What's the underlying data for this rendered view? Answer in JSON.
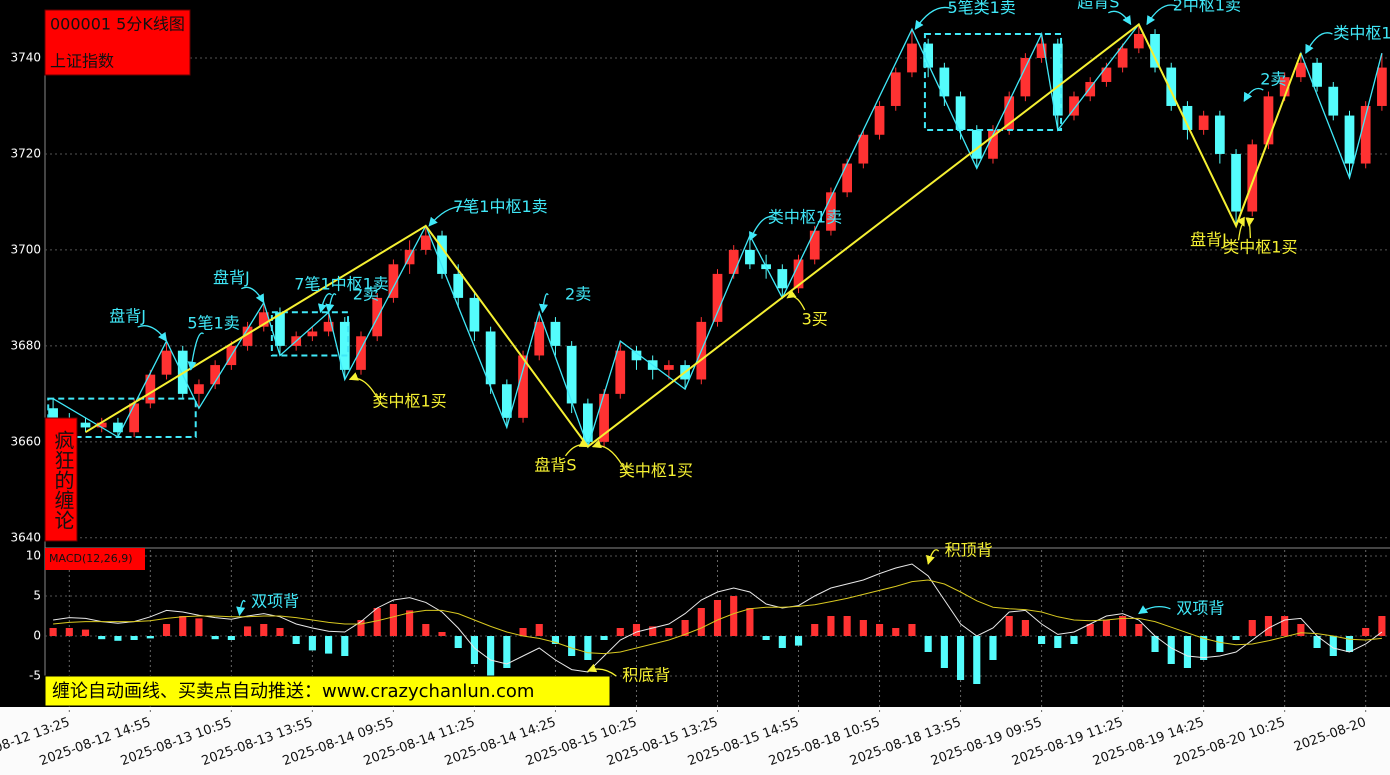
{
  "chart_data": {
    "type": "candlestick",
    "title": "000001 5分K线图",
    "subtitle": "上证指数",
    "brand": "疯狂的缠论",
    "footer": "缠论自动画线、买卖点自动推送：www.crazychanlun.com",
    "up_color": "#ff3232",
    "down_color": "#54fcfc",
    "xlim": [
      -0.5,
      82.5
    ],
    "xticks": [
      {
        "value": 1,
        "label": "2025-08-12 13:25"
      },
      {
        "value": 6,
        "label": "2025-08-12 14:55"
      },
      {
        "value": 11,
        "label": "2025-08-13 10:55"
      },
      {
        "value": 16,
        "label": "2025-08-13 13:55"
      },
      {
        "value": 21,
        "label": "2025-08-14 09:55"
      },
      {
        "value": 26,
        "label": "2025-08-14 11:25"
      },
      {
        "value": 31,
        "label": "2025-08-14 14:25"
      },
      {
        "value": 36,
        "label": "2025-08-15 10:25"
      },
      {
        "value": 41,
        "label": "2025-08-15 13:25"
      },
      {
        "value": 46,
        "label": "2025-08-15 14:55"
      },
      {
        "value": 51,
        "label": "2025-08-18 10:55"
      },
      {
        "value": 56,
        "label": "2025-08-18 13:55"
      },
      {
        "value": 61,
        "label": "2025-08-19 09:55"
      },
      {
        "value": 66,
        "label": "2025-08-19 11:25"
      },
      {
        "value": 71,
        "label": "2025-08-19 14:25"
      },
      {
        "value": 76,
        "label": "2025-08-20 10:25"
      },
      {
        "value": 81,
        "label": "2025-08-20"
      }
    ],
    "ylim": [
      3638.5,
      3750
    ],
    "yticks": [
      3640,
      3660,
      3680,
      3700,
      3720,
      3740
    ],
    "grid": true,
    "open": [
      3667,
      3665,
      3664,
      3663,
      3664,
      3662,
      3668,
      3674,
      3679,
      3670,
      3672,
      3676,
      3680,
      3684,
      3687,
      3680,
      3682,
      3683,
      3685,
      3675,
      3682,
      3690,
      3697,
      3700,
      3703,
      3695,
      3690,
      3683,
      3672,
      3665,
      3678,
      3685,
      3680,
      3668,
      3660,
      3670,
      3679,
      3677,
      3675,
      3676,
      3673,
      3685,
      3695,
      3700,
      3697,
      3696,
      3692,
      3698,
      3704,
      3712,
      3718,
      3724,
      3730,
      3737,
      3743,
      3738,
      3732,
      3725,
      3719,
      3725,
      3732,
      3740,
      3743,
      3728,
      3732,
      3735,
      3738,
      3742,
      3745,
      3738,
      3730,
      3725,
      3728,
      3720,
      3708,
      3722,
      3732,
      3736,
      3739,
      3734,
      3728,
      3718,
      3730
    ],
    "high": [
      3669,
      3666,
      3665,
      3665,
      3665,
      3669,
      3675,
      3681,
      3680,
      3673,
      3677,
      3681,
      3685,
      3689,
      3688,
      3683,
      3684,
      3687,
      3686,
      3683,
      3691,
      3698,
      3702,
      3705,
      3704,
      3697,
      3691,
      3684,
      3673,
      3679,
      3687,
      3686,
      3681,
      3669,
      3671,
      3681,
      3680,
      3678,
      3677,
      3677,
      3686,
      3696,
      3701,
      3703,
      3699,
      3697,
      3699,
      3705,
      3713,
      3719,
      3725,
      3731,
      3738,
      3746,
      3744,
      3739,
      3733,
      3726,
      3726,
      3733,
      3741,
      3745,
      3744,
      3733,
      3736,
      3739,
      3743,
      3747,
      3746,
      3739,
      3731,
      3729,
      3729,
      3721,
      3723,
      3733,
      3737,
      3741,
      3740,
      3735,
      3729,
      3731,
      3741
    ],
    "low": [
      3664,
      3663,
      3662,
      3662,
      3661,
      3661,
      3667,
      3673,
      3669,
      3667,
      3671,
      3675,
      3679,
      3683,
      3678,
      3679,
      3681,
      3682,
      3673,
      3674,
      3681,
      3689,
      3695,
      3699,
      3694,
      3688,
      3681,
      3670,
      3663,
      3664,
      3677,
      3678,
      3666,
      3659,
      3659,
      3669,
      3675,
      3673,
      3673,
      3671,
      3672,
      3684,
      3694,
      3696,
      3694,
      3690,
      3691,
      3697,
      3703,
      3711,
      3717,
      3723,
      3729,
      3736,
      3736,
      3730,
      3723,
      3717,
      3718,
      3724,
      3731,
      3739,
      3725,
      3727,
      3731,
      3734,
      3737,
      3741,
      3737,
      3729,
      3723,
      3724,
      3718,
      3705,
      3707,
      3721,
      3731,
      3735,
      3733,
      3727,
      3715,
      3717,
      3729
    ],
    "close": [
      3665,
      3664,
      3663,
      3664,
      3662,
      3668,
      3674,
      3679,
      3670,
      3672,
      3676,
      3680,
      3684,
      3687,
      3680,
      3682,
      3683,
      3685,
      3675,
      3682,
      3690,
      3697,
      3700,
      3703,
      3695,
      3690,
      3683,
      3672,
      3665,
      3678,
      3685,
      3680,
      3668,
      3660,
      3670,
      3679,
      3677,
      3675,
      3676,
      3673,
      3685,
      3695,
      3700,
      3697,
      3696,
      3692,
      3698,
      3704,
      3712,
      3718,
      3724,
      3730,
      3737,
      3743,
      3738,
      3732,
      3725,
      3719,
      3725,
      3732,
      3740,
      3743,
      3728,
      3732,
      3735,
      3738,
      3742,
      3745,
      3738,
      3730,
      3725,
      3728,
      3720,
      3708,
      3722,
      3732,
      3736,
      3739,
      3734,
      3728,
      3718,
      3730,
      3738
    ],
    "bi": {
      "color": "#40e8f8",
      "x": [
        0,
        4,
        7,
        9,
        13,
        14,
        17,
        18,
        23,
        28,
        30,
        33,
        35,
        39,
        43,
        45,
        53,
        57,
        61,
        62,
        67,
        73,
        77,
        80,
        82
      ],
      "y": [
        3669,
        3661,
        3681,
        3667,
        3689,
        3678,
        3687,
        3673,
        3705,
        3663,
        3687,
        3659,
        3681,
        3671,
        3703,
        3690,
        3746,
        3717,
        3745,
        3725,
        3747,
        3705,
        3741,
        3715,
        3741
      ]
    },
    "segment": {
      "color": "#f5f032",
      "x": [
        2,
        23,
        33,
        67,
        73,
        77
      ],
      "y": [
        3662,
        3705,
        3659,
        3747,
        3705,
        3741
      ]
    },
    "boxes": [
      {
        "x": [
          -0.3,
          8.8
        ],
        "y": [
          3661,
          3669
        ]
      },
      {
        "x": [
          13.5,
          18.2
        ],
        "y": [
          3678,
          3687
        ]
      },
      {
        "x": [
          53.8,
          62.2
        ],
        "y": [
          3725,
          3745
        ]
      }
    ],
    "annotations": [
      {
        "text": "盘背J",
        "x": 4.6,
        "y": 3686,
        "to": [
          7,
          3681
        ],
        "color": "#40e8f8"
      },
      {
        "text": "5笔1卖",
        "x": 9.9,
        "y": 3684.6,
        "to": [
          8.5,
          3675
        ],
        "color": "#40e8f8"
      },
      {
        "text": "盘背J",
        "x": 11,
        "y": 3694,
        "to": [
          13,
          3689
        ],
        "color": "#40e8f8"
      },
      {
        "text": "7笔1中枢1卖",
        "x": 17.8,
        "y": 3692.7,
        "to": [
          16.5,
          3687
        ],
        "color": "#40e8f8"
      },
      {
        "text": "2卖",
        "x": 19.3,
        "y": 3690.6,
        "to": [
          17,
          3687
        ],
        "color": "#40e8f8"
      },
      {
        "text": "类中枢1买",
        "x": 22,
        "y": 3668.3,
        "to": [
          18.3,
          3673
        ],
        "color": "#f5f032"
      },
      {
        "text": "7笔1中枢1卖",
        "x": 27.6,
        "y": 3708.8,
        "to": [
          23.2,
          3705
        ],
        "color": "#40e8f8"
      },
      {
        "text": "2卖",
        "x": 32.4,
        "y": 3690.6,
        "to": [
          30.2,
          3687
        ],
        "color": "#40e8f8"
      },
      {
        "text": "盘背S",
        "x": 31,
        "y": 3655,
        "to": [
          33,
          3659
        ],
        "color": "#f5f032"
      },
      {
        "text": "类中枢1买",
        "x": 37.2,
        "y": 3653.8,
        "to": [
          33.3,
          3659
        ],
        "color": "#f5f032"
      },
      {
        "text": "类中枢1卖",
        "x": 46.4,
        "y": 3706.7,
        "to": [
          43,
          3702
        ],
        "color": "#40e8f8"
      },
      {
        "text": "3买",
        "x": 47,
        "y": 3685.4,
        "to": [
          45.3,
          3690
        ],
        "color": "#f5f032"
      },
      {
        "text": "5笔类1卖",
        "x": 57.3,
        "y": 3750.3,
        "to": [
          53.2,
          3746
        ],
        "color": "#40e8f8"
      },
      {
        "text": "超背S",
        "x": 64.5,
        "y": 3751.5,
        "to": [
          66.5,
          3747
        ],
        "color": "#40e8f8"
      },
      {
        "text": "2中枢1卖",
        "x": 71.2,
        "y": 3750.8,
        "to": [
          67.5,
          3747
        ],
        "color": "#40e8f8"
      },
      {
        "text": "2卖",
        "x": 75.3,
        "y": 3735.4,
        "to": [
          73.5,
          3731
        ],
        "color": "#40e8f8"
      },
      {
        "text": "类中枢1",
        "x": 80.8,
        "y": 3745,
        "to": [
          77.3,
          3741
        ],
        "color": "#40e8f8"
      },
      {
        "text": "盘背J",
        "x": 71.3,
        "y": 3702,
        "to": [
          73.5,
          3705
        ],
        "color": "#f5f032"
      },
      {
        "text": "类中枢1买",
        "x": 74.5,
        "y": 3700.4,
        "to": [
          73.8,
          3705
        ],
        "color": "#f5f032"
      }
    ],
    "macd": {
      "label": "MACD(12,26,9)",
      "ylim": [
        -8.75,
        10.75
      ],
      "yticks": [
        10,
        5,
        0,
        -5
      ],
      "hist": [
        1,
        1,
        0.8,
        -0.4,
        -0.6,
        -0.5,
        -0.3,
        1.5,
        2.5,
        2.2,
        -0.4,
        -0.5,
        1.2,
        1.5,
        1.0,
        -1.0,
        -1.8,
        -2.2,
        -2.5,
        2.0,
        3.5,
        4.0,
        3.2,
        1.5,
        0.5,
        -1.5,
        -3.5,
        -5.0,
        -4.0,
        1.0,
        1.5,
        -1.0,
        -2.5,
        -3.0,
        -0.5,
        1.0,
        1.5,
        1.2,
        1.0,
        2.0,
        3.5,
        4.5,
        5.0,
        3.5,
        -0.5,
        -1.5,
        -1.2,
        1.5,
        2.5,
        2.5,
        2.0,
        1.5,
        1.0,
        1.5,
        -2.0,
        -4.0,
        -5.5,
        -6.0,
        -3.0,
        2.5,
        2.0,
        -1.0,
        -1.5,
        -1.0,
        1.5,
        2.0,
        2.5,
        1.5,
        -2.0,
        -3.5,
        -4.0,
        -3.0,
        -2.0,
        -0.5,
        2.0,
        2.5,
        2.5,
        1.5,
        -1.5,
        -2.5,
        -2.0,
        1.0,
        2.5
      ],
      "series": [
        {
          "color": "#e8e8e8",
          "values": [
            2.0,
            2.3,
            2.2,
            1.8,
            1.6,
            1.8,
            2.4,
            3.2,
            3.0,
            2.6,
            2.3,
            2.1,
            2.5,
            2.8,
            2.4,
            1.5,
            1.0,
            0.6,
            0.5,
            1.8,
            3.5,
            4.5,
            4.8,
            4.2,
            3.0,
            1.0,
            -1.5,
            -3.0,
            -3.5,
            -2.5,
            -1.5,
            -3.0,
            -4.2,
            -4.5,
            -2.5,
            -0.5,
            0.5,
            1.0,
            1.5,
            2.8,
            4.5,
            5.5,
            6.0,
            5.5,
            4.0,
            3.5,
            3.8,
            5.0,
            6.0,
            6.5,
            7.0,
            7.8,
            8.5,
            9.0,
            7.5,
            4.5,
            1.5,
            0.0,
            1.0,
            3.0,
            3.2,
            1.5,
            0.2,
            0.5,
            1.5,
            2.5,
            2.8,
            2.0,
            0.0,
            -1.5,
            -2.5,
            -2.7,
            -2.5,
            -2.0,
            -0.5,
            1.0,
            2.0,
            2.2,
            0.0,
            -1.5,
            -2.0,
            -1.0,
            0.5
          ]
        },
        {
          "color": "#d8c820",
          "values": [
            1.5,
            1.7,
            1.8,
            1.8,
            1.8,
            1.8,
            1.9,
            2.2,
            2.4,
            2.5,
            2.5,
            2.4,
            2.4,
            2.5,
            2.5,
            2.3,
            2.0,
            1.7,
            1.5,
            1.5,
            1.9,
            2.4,
            2.9,
            3.2,
            3.2,
            2.8,
            2.0,
            1.2,
            0.5,
            0.0,
            -0.3,
            -0.8,
            -1.5,
            -2.1,
            -2.2,
            -2.0,
            -1.5,
            -1.0,
            -0.5,
            0.2,
            1.0,
            2.0,
            2.8,
            3.4,
            3.6,
            3.6,
            3.7,
            3.9,
            4.3,
            4.7,
            5.2,
            5.7,
            6.2,
            6.8,
            7.0,
            6.5,
            5.5,
            4.4,
            3.6,
            3.4,
            3.3,
            3.0,
            2.4,
            2.0,
            1.9,
            2.0,
            2.2,
            2.2,
            1.8,
            1.1,
            0.4,
            -0.3,
            -0.8,
            -1.1,
            -1.0,
            -0.6,
            -0.1,
            0.4,
            0.3,
            0.0,
            -0.4,
            -0.5,
            -0.3
          ]
        }
      ],
      "annotations": [
        {
          "text": "双项背",
          "x": 13.7,
          "y": 4.25,
          "to": [
            11.5,
            2.6
          ],
          "color": "#40e8f8"
        },
        {
          "text": "积底背",
          "x": 36.6,
          "y": -5,
          "to": [
            33,
            -4.4
          ],
          "color": "#f5f032"
        },
        {
          "text": "积顶背",
          "x": 56.5,
          "y": 10.6,
          "to": [
            54,
            9
          ],
          "color": "#f5f032"
        },
        {
          "text": "双项背",
          "x": 70.8,
          "y": 3.4,
          "to": [
            67,
            2.8
          ],
          "color": "#40e8f8"
        }
      ]
    }
  }
}
